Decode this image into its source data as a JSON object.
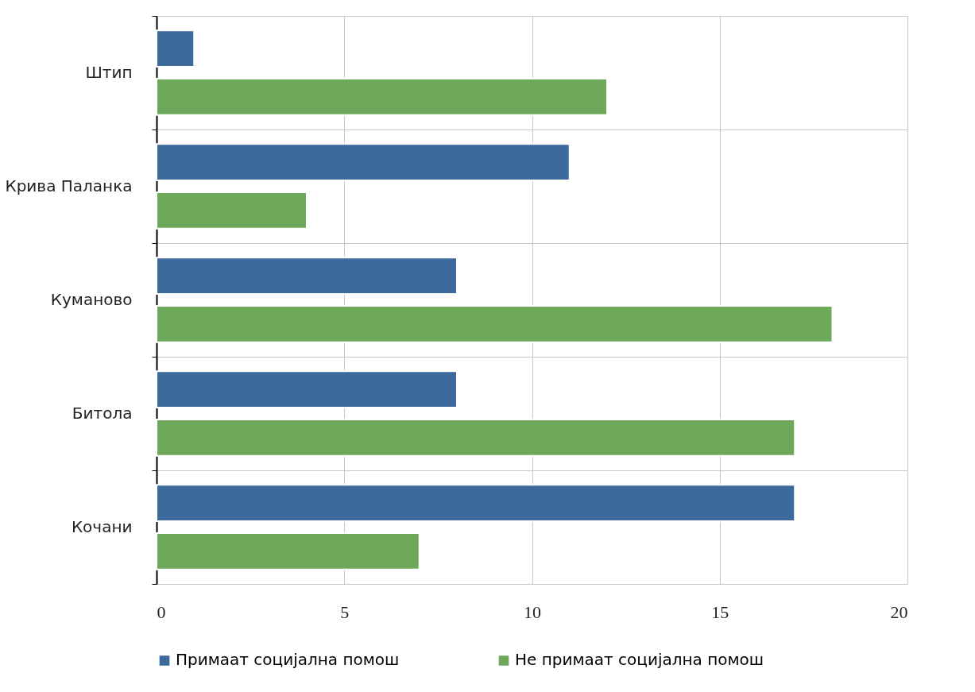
{
  "chart_data": {
    "type": "bar",
    "orientation": "horizontal",
    "categories": [
      "Штип",
      "Крива Паланка",
      "Куманово",
      "Битола",
      "Кочани"
    ],
    "series": [
      {
        "name": "Примаат социјална помош",
        "color": "#3d6a9c",
        "values": [
          1,
          11,
          8,
          8,
          17
        ]
      },
      {
        "name": "Не примаат социјална помош",
        "color": "#6ea85a",
        "values": [
          12,
          4,
          18,
          17,
          7
        ]
      }
    ],
    "xlim": [
      0,
      20
    ],
    "xticks": [
      0,
      5,
      10,
      15,
      20
    ],
    "grid": true,
    "legend": "bottom"
  }
}
